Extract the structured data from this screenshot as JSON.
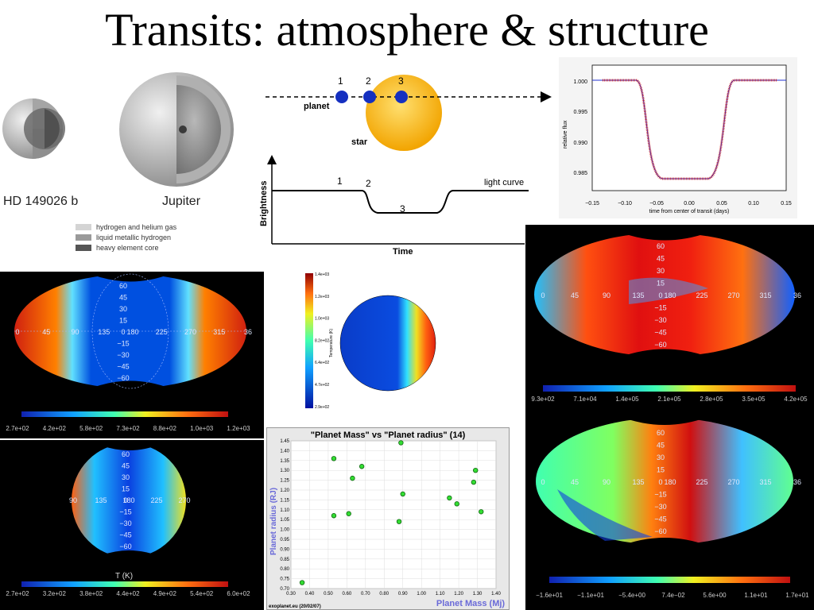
{
  "title": "Transits: atmosphere & structure",
  "interior": {
    "planet_a": "HD 149026 b",
    "planet_b": "Jupiter",
    "legend": [
      {
        "label": "hydrogen and helium gas",
        "color": "#d4d4d4"
      },
      {
        "label": "liquid metallic hydrogen",
        "color": "#9a9a9a"
      },
      {
        "label": "heavy element core",
        "color": "#555555"
      }
    ]
  },
  "transit_diagram": {
    "labels": [
      "1",
      "2",
      "3"
    ],
    "planet_label": "planet",
    "star_label": "star",
    "ylabel": "Brightness",
    "xlabel": "Time",
    "curve_label": "light curve"
  },
  "lightcurve": {
    "ylabel": "relative flux",
    "xlabel": "time from center of transit (days)",
    "yticks": [
      "1.000",
      "0.995",
      "0.990",
      "0.985"
    ],
    "xticks": [
      "−0.15",
      "−0.10",
      "−0.05",
      "0.00",
      "0.05",
      "0.10",
      "0.15"
    ]
  },
  "map1": {
    "lat": [
      "60",
      "45",
      "30",
      "15",
      "0",
      "−15",
      "−30",
      "−45",
      "−60"
    ],
    "lon": [
      "0",
      "45",
      "90",
      "135",
      "180",
      "225",
      "270",
      "315",
      "36"
    ],
    "cbar": [
      "2.7e+02",
      "4.2e+02",
      "5.8e+02",
      "7.3e+02",
      "8.8e+02",
      "1.0e+03",
      "1.2e+03"
    ]
  },
  "map2": {
    "lat": [
      "60",
      "45",
      "30",
      "15",
      "0",
      "−15",
      "−30",
      "−45",
      "−60"
    ],
    "lon": [
      "90",
      "135",
      "180",
      "225",
      "270"
    ],
    "caption": "T (K)",
    "cbar": [
      "2.7e+02",
      "3.2e+02",
      "3.8e+02",
      "4.4e+02",
      "4.9e+02",
      "5.4e+02",
      "6.0e+02"
    ]
  },
  "sphere": {
    "ticks": [
      "1.4e+03",
      "1.2e+03",
      "1.0e+03",
      "8.2e+02",
      "6.4e+02",
      "4.7e+02",
      "2.9e+02"
    ],
    "cbar_label": "Temperature (K)"
  },
  "map3": {
    "lat": [
      "60",
      "45",
      "30",
      "15",
      "0",
      "−15",
      "−30",
      "−45",
      "−60"
    ],
    "lon": [
      "0",
      "45",
      "90",
      "135",
      "180",
      "225",
      "270",
      "315",
      "36"
    ],
    "cbar": [
      "9.3e+02",
      "7.1e+04",
      "1.4e+05",
      "2.1e+05",
      "2.8e+05",
      "3.5e+05",
      "4.2e+05"
    ]
  },
  "map4": {
    "lat": [
      "60",
      "45",
      "30",
      "15",
      "0",
      "−15",
      "−30",
      "−45",
      "−60"
    ],
    "lon": [
      "0",
      "45",
      "90",
      "135",
      "180",
      "225",
      "270",
      "315",
      "36"
    ],
    "cbar": [
      "−1.6e+01",
      "−1.1e+01",
      "−5.4e+00",
      "7.4e−02",
      "5.6e+00",
      "1.1e+01",
      "1.7e+01"
    ]
  },
  "chart_data": {
    "type": "scatter",
    "title": "\"Planet Mass\"  vs \"Planet radius\" (14)",
    "xlabel": "Planet Mass (Mj)",
    "ylabel": "Planet radius (RJ)",
    "xlim": [
      0.3,
      1.4
    ],
    "ylim": [
      0.7,
      1.45
    ],
    "xticks": [
      "0.30",
      "0.40",
      "0.50",
      "0.60",
      "0.70",
      "0.80",
      "0.90",
      "1.00",
      "1.10",
      "1.20",
      "1.30",
      "1.40"
    ],
    "yticks": [
      "0.70",
      "0.75",
      "0.80",
      "0.85",
      "0.90",
      "0.95",
      "1.00",
      "1.05",
      "1.10",
      "1.15",
      "1.20",
      "1.25",
      "1.30",
      "1.35",
      "1.40",
      "1.45"
    ],
    "points": [
      {
        "x": 0.36,
        "y": 0.73
      },
      {
        "x": 0.53,
        "y": 1.36
      },
      {
        "x": 0.53,
        "y": 1.07
      },
      {
        "x": 0.61,
        "y": 1.08
      },
      {
        "x": 0.63,
        "y": 1.26
      },
      {
        "x": 0.68,
        "y": 1.32
      },
      {
        "x": 0.88,
        "y": 1.04
      },
      {
        "x": 0.89,
        "y": 1.44
      },
      {
        "x": 0.9,
        "y": 1.18
      },
      {
        "x": 1.15,
        "y": 1.16
      },
      {
        "x": 1.19,
        "y": 1.13
      },
      {
        "x": 1.28,
        "y": 1.24
      },
      {
        "x": 1.29,
        "y": 1.3
      },
      {
        "x": 1.32,
        "y": 1.09
      }
    ],
    "grid": true,
    "footer": "exoplanet.eu (20/02/07)"
  }
}
